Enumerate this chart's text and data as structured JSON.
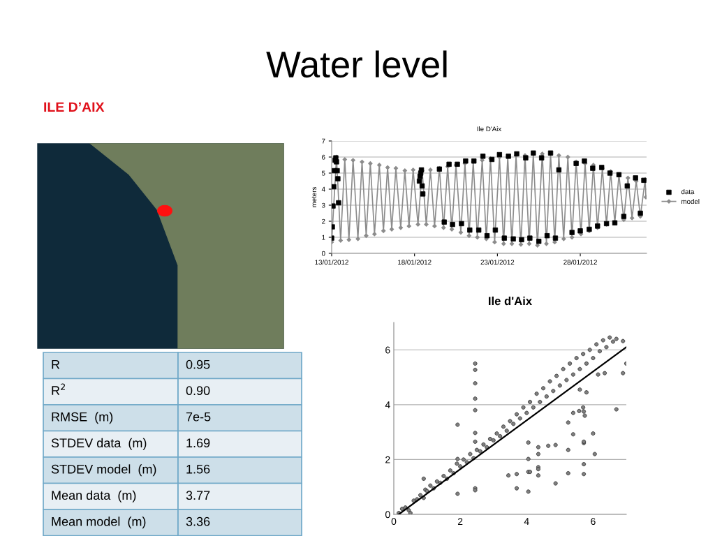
{
  "chart_data": [
    {
      "type": "other",
      "title": "Water level",
      "subtitle": "ILE D’AIX",
      "annotations": [
        "R",
        "0.95",
        "R$^{2}$",
        "0.90",
        "RMSE  (m)",
        "7e-5",
        "STDEV data  (m)",
        "1.69",
        "STDEV model  (m)",
        "1.56",
        "Mean data  (m)",
        "3.77",
        "Mean model  (m)",
        "3.36"
      ]
    },
    {
      "type": "line",
      "title": "Ile D'Aix",
      "ylabel": "meters",
      "legend": "right",
      "grid": "y",
      "xlim": [
        "2012-01-13",
        "2012-02-01"
      ],
      "xticks": [
        {
          "value": "2012-01-13",
          "label": "13/01/2012"
        },
        {
          "value": "2012-01-18",
          "label": "18/01/2012"
        },
        {
          "value": "2012-01-23",
          "label": "23/01/2012"
        },
        {
          "value": "2012-01-28",
          "label": "28/01/2012"
        }
      ],
      "ylim": [
        0,
        7
      ],
      "yticks": [
        0,
        1,
        2,
        3,
        4,
        5,
        6,
        7
      ],
      "series": [
        {
          "name": "data",
          "type": "scatter",
          "marker": "square",
          "color": "#000000",
          "x": [
            "2012-01-13T00:00",
            "2012-01-13T01:00",
            "2012-01-13T02:00",
            "2012-01-13T03:00",
            "2012-01-13T04:00",
            "2012-01-13T05:00",
            "2012-01-13T06:00",
            "2012-01-13T07:00",
            "2012-01-13T08:00",
            "2012-01-13T09:00",
            "2012-01-13T10:00",
            "2012-01-18T07:00",
            "2012-01-18T08:00",
            "2012-01-18T09:00",
            "2012-01-18T10:00",
            "2012-01-18T11:00",
            "2012-01-18T12:00",
            "2012-01-19T12:00",
            "2012-01-19T19:00",
            "2012-01-20T02:00",
            "2012-01-20T07:00",
            "2012-01-20T14:00",
            "2012-01-20T20:00",
            "2012-01-21T02:00",
            "2012-01-21T08:00",
            "2012-01-21T14:00",
            "2012-01-21T21:00",
            "2012-01-22T03:00",
            "2012-01-22T09:00",
            "2012-01-22T16:00",
            "2012-01-22T21:00",
            "2012-01-23T03:00",
            "2012-01-23T10:00",
            "2012-01-23T16:00",
            "2012-01-23T23:00",
            "2012-01-24T04:00",
            "2012-01-24T11:00",
            "2012-01-24T17:00",
            "2012-01-24T23:00",
            "2012-01-25T04:00",
            "2012-01-25T12:00",
            "2012-01-25T16:00",
            "2012-01-26T00:00",
            "2012-01-26T05:00",
            "2012-01-26T12:00",
            "2012-01-26T17:00",
            "2012-01-27T12:00",
            "2012-01-27T18:00",
            "2012-01-28T00:00",
            "2012-01-28T06:00",
            "2012-01-28T13:00",
            "2012-01-28T18:00",
            "2012-01-29T01:00",
            "2012-01-29T07:00",
            "2012-01-29T14:00",
            "2012-01-29T19:00",
            "2012-01-30T02:00",
            "2012-01-30T08:00",
            "2012-01-30T15:00",
            "2012-01-30T20:00",
            "2012-01-31T08:00",
            "2012-01-31T15:00",
            "2012-01-31T20:00"
          ],
          "values": [
            0.95,
            1.65,
            2.95,
            4.15,
            5.15,
            5.8,
            5.95,
            5.7,
            5.15,
            4.65,
            3.15,
            4.5,
            4.8,
            5.0,
            5.2,
            4.2,
            3.7,
            5.25,
            1.95,
            5.55,
            1.8,
            5.55,
            1.85,
            5.75,
            1.45,
            5.75,
            1.45,
            6.05,
            1.1,
            5.85,
            1.45,
            6.15,
            0.95,
            6.05,
            0.9,
            6.2,
            0.85,
            5.95,
            0.95,
            6.25,
            0.75,
            5.95,
            1.1,
            6.25,
            0.95,
            5.2,
            1.3,
            5.6,
            1.4,
            5.75,
            1.5,
            5.3,
            1.7,
            5.35,
            1.85,
            5.0,
            1.9,
            4.9,
            2.3,
            4.2,
            4.7,
            2.5,
            4.55
          ]
        },
        {
          "name": "model",
          "type": "line",
          "marker": "diamond",
          "color": "#8c8c8c",
          "x": [
            "2012-01-13T00:00",
            "2012-01-13T07:00",
            "2012-01-13T13:00",
            "2012-01-13T19:00",
            "2012-01-14T01:00",
            "2012-01-14T07:00",
            "2012-01-14T14:00",
            "2012-01-14T20:00",
            "2012-01-15T02:00",
            "2012-01-15T08:00",
            "2012-01-15T14:00",
            "2012-01-15T21:00",
            "2012-01-16T03:00",
            "2012-01-16T09:00",
            "2012-01-16T15:00",
            "2012-01-16T21:00",
            "2012-01-17T04:00",
            "2012-01-17T10:00",
            "2012-01-17T16:00",
            "2012-01-17T22:00",
            "2012-01-18T05:00",
            "2012-01-18T11:00",
            "2012-01-18T17:00",
            "2012-01-18T23:00",
            "2012-01-19T05:00",
            "2012-01-19T12:00",
            "2012-01-19T18:00",
            "2012-01-20T00:00",
            "2012-01-20T06:00",
            "2012-01-20T12:00",
            "2012-01-20T19:00",
            "2012-01-21T01:00",
            "2012-01-21T07:00",
            "2012-01-21T13:00",
            "2012-01-21T19:00",
            "2012-01-22T02:00",
            "2012-01-22T08:00",
            "2012-01-22T14:00",
            "2012-01-22T20:00",
            "2012-01-23T03:00",
            "2012-01-23T09:00",
            "2012-01-23T15:00",
            "2012-01-23T21:00",
            "2012-01-24T03:00",
            "2012-01-24T10:00",
            "2012-01-24T16:00",
            "2012-01-24T22:00",
            "2012-01-25T04:00",
            "2012-01-25T10:00",
            "2012-01-25T17:00",
            "2012-01-25T23:00",
            "2012-01-26T05:00",
            "2012-01-26T11:00",
            "2012-01-26T17:00",
            "2012-01-27T00:00",
            "2012-01-27T06:00",
            "2012-01-27T12:00",
            "2012-01-27T18:00",
            "2012-01-28T01:00",
            "2012-01-28T07:00",
            "2012-01-28T13:00",
            "2012-01-28T19:00",
            "2012-01-29T01:00",
            "2012-01-29T08:00",
            "2012-01-29T14:00",
            "2012-01-29T20:00",
            "2012-01-30T02:00",
            "2012-01-30T08:00",
            "2012-01-30T15:00",
            "2012-01-30T21:00",
            "2012-01-31T03:00",
            "2012-01-31T09:00",
            "2012-01-31T15:00",
            "2012-01-31T22:00",
            "2012-01-31T23:00"
          ],
          "values": [
            0.7,
            6.0,
            0.8,
            5.85,
            0.85,
            5.8,
            0.9,
            5.7,
            1.1,
            5.6,
            1.2,
            5.5,
            1.4,
            5.35,
            1.5,
            5.3,
            1.6,
            5.15,
            1.7,
            5.2,
            1.8,
            5.15,
            1.8,
            5.2,
            1.7,
            5.3,
            1.6,
            5.4,
            1.5,
            5.5,
            1.3,
            5.6,
            1.1,
            5.7,
            1.0,
            5.8,
            0.9,
            5.9,
            0.7,
            6.0,
            0.6,
            6.0,
            0.6,
            6.1,
            0.55,
            6.1,
            0.6,
            6.2,
            0.5,
            6.2,
            0.6,
            6.2,
            0.7,
            6.1,
            0.9,
            6.0,
            1.0,
            5.7,
            1.2,
            5.6,
            1.4,
            5.5,
            1.6,
            5.3,
            1.8,
            5.1,
            1.9,
            4.9,
            2.1,
            4.7,
            2.2,
            4.5,
            2.3,
            4.6,
            3.5
          ]
        }
      ]
    },
    {
      "type": "scatter",
      "title": "Ile d'Aix",
      "grid": "y",
      "legend": false,
      "xlim": [
        0,
        7
      ],
      "xticks": [
        0,
        2,
        4,
        6
      ],
      "ylim": [
        0,
        7
      ],
      "yticks": [
        0,
        2,
        4,
        6
      ],
      "series": [
        {
          "type": "scatter",
          "marker": "circle",
          "color": "#808080",
          "x": [
            0.15,
            0.25,
            0.35,
            0.45,
            0.5,
            0.6,
            0.7,
            0.8,
            0.9,
            0.95,
            1.0,
            1.1,
            1.2,
            1.3,
            1.4,
            1.5,
            1.6,
            1.7,
            1.8,
            1.9,
            2.0,
            2.1,
            2.2,
            2.3,
            2.4,
            2.5,
            2.6,
            2.7,
            2.8,
            2.9,
            3.0,
            3.1,
            3.2,
            3.3,
            3.4,
            3.5,
            3.6,
            3.7,
            3.8,
            3.9,
            4.0,
            4.1,
            4.2,
            4.3,
            4.4,
            4.5,
            4.6,
            4.7,
            4.8,
            4.9,
            5.0,
            5.1,
            5.2,
            5.3,
            5.4,
            5.5,
            5.6,
            5.7,
            5.8,
            5.9,
            6.0,
            6.1,
            6.2,
            6.3,
            6.4,
            6.5,
            6.6,
            6.7,
            2.45,
            2.45,
            2.45,
            2.45,
            2.45,
            2.45,
            2.45,
            2.45,
            2.45,
            1.92,
            1.92,
            1.92,
            0.9,
            3.45,
            3.7,
            3.7,
            4.05,
            4.05,
            4.05,
            4.1,
            4.05,
            4.35,
            4.35,
            4.35,
            4.35,
            4.35,
            4.65,
            4.87,
            4.87,
            5.25,
            5.25,
            5.25,
            5.4,
            5.4,
            5.58,
            5.7,
            5.72,
            5.75,
            5.72,
            5.72,
            5.72,
            5.72,
            6.0,
            6.05,
            6.7,
            6.9,
            7.0,
            6.9,
            6.35,
            6.15,
            5.8,
            5.6
          ],
          "values": [
            0.05,
            0.2,
            0.25,
            0.15,
            0.05,
            0.5,
            0.55,
            0.7,
            0.6,
            0.9,
            0.85,
            1.05,
            0.95,
            1.2,
            1.15,
            1.4,
            1.3,
            1.6,
            1.5,
            1.85,
            1.75,
            2.0,
            1.9,
            2.2,
            2.05,
            2.35,
            2.3,
            2.55,
            2.45,
            2.75,
            2.7,
            2.95,
            2.85,
            3.2,
            3.05,
            3.4,
            3.3,
            3.65,
            3.5,
            3.9,
            3.7,
            4.1,
            3.9,
            4.4,
            4.1,
            4.6,
            4.3,
            4.85,
            4.5,
            5.05,
            4.7,
            5.3,
            4.9,
            5.5,
            5.1,
            5.7,
            5.3,
            5.85,
            5.5,
            6.0,
            5.7,
            6.2,
            5.95,
            6.35,
            6.1,
            6.45,
            6.3,
            6.4,
            5.5,
            5.27,
            4.78,
            4.22,
            3.8,
            2.97,
            2.65,
            0.95,
            0.88,
            3.27,
            2.02,
            0.75,
            1.3,
            1.42,
            1.47,
            0.95,
            2.62,
            2.02,
            1.55,
            1.55,
            0.83,
            2.45,
            2.2,
            1.72,
            1.65,
            1.42,
            2.5,
            2.53,
            1.13,
            3.35,
            2.35,
            1.5,
            3.7,
            2.92,
            3.77,
            3.9,
            3.75,
            3.6,
            2.6,
            2.65,
            1.83,
            1.47,
            2.95,
            2.2,
            3.83,
            5.15,
            5.5,
            6.32,
            5.15,
            5.1,
            4.45,
            4.55
          ]
        },
        {
          "type": "line",
          "color": "#000000",
          "x": [
            0.15,
            7.0
          ],
          "values": [
            0.0,
            6.1
          ]
        }
      ]
    }
  ]
}
